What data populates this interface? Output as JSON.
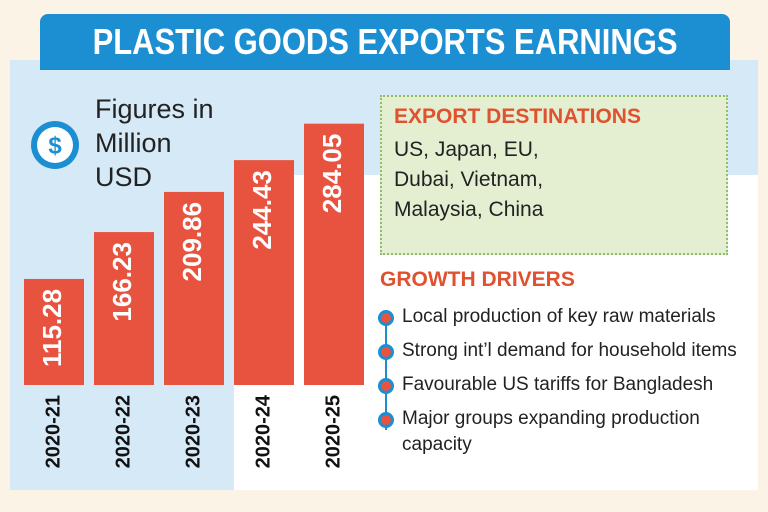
{
  "chart_data": {
    "type": "bar",
    "title": "PLASTIC GOODS EXPORTS EARNINGS",
    "subtitle": "Figures in Million USD",
    "categories": [
      "2020-21",
      "2020-22",
      "2020-23",
      "2020-24",
      "2020-25"
    ],
    "values": [
      115.28,
      166.23,
      209.86,
      244.43,
      284.05
    ],
    "color": "#e8533f"
  },
  "export_destinations": {
    "heading": "EXPORT DESTINATIONS",
    "text": "US, Japan, EU, Dubai, Vietnam, Malaysia, China"
  },
  "growth_drivers": {
    "heading": "GROWTH DRIVERS",
    "items": [
      "Local production of key raw materials",
      "Strong int’l demand for household items",
      "Favourable US tariffs for Bangladesh",
      "Major groups expanding production capacity"
    ]
  }
}
